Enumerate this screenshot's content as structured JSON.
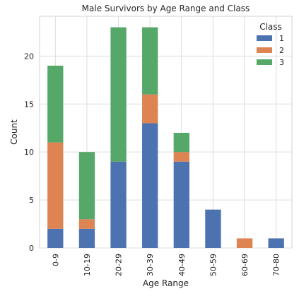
{
  "chart_data": {
    "type": "bar",
    "stacked": true,
    "title": "Male Survivors by Age Range and Class",
    "xlabel": "Age Range",
    "ylabel": "Count",
    "categories": [
      "0-9",
      "10-19",
      "20-29",
      "30-39",
      "40-49",
      "50-59",
      "60-69",
      "70-80"
    ],
    "series": [
      {
        "name": "1",
        "color": "#4c72b0",
        "values": [
          2,
          2,
          9,
          13,
          9,
          4,
          0,
          1
        ]
      },
      {
        "name": "2",
        "color": "#dd8452",
        "values": [
          9,
          1,
          0,
          3,
          1,
          0,
          1,
          0
        ]
      },
      {
        "name": "3",
        "color": "#55a868",
        "values": [
          8,
          7,
          14,
          7,
          2,
          0,
          0,
          0
        ]
      }
    ],
    "ylim": [
      0,
      24.15
    ],
    "yticks": [
      0,
      5,
      10,
      15,
      20
    ],
    "grid": true,
    "legend": {
      "title": "Class",
      "position": "top-right"
    }
  }
}
